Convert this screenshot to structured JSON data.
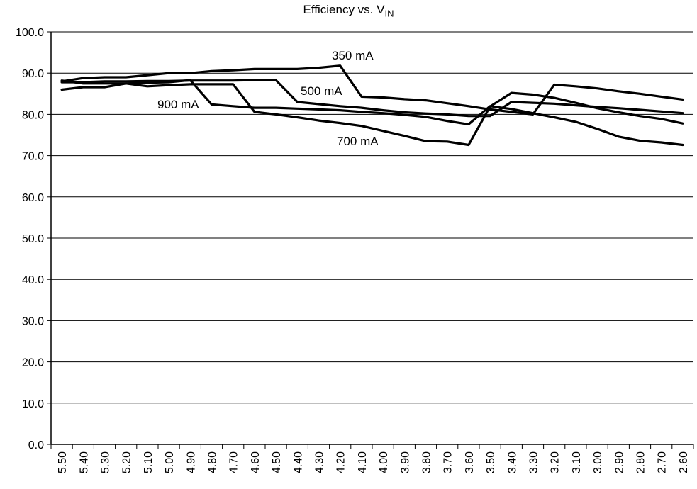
{
  "chart_data": {
    "type": "line",
    "title_text": "Efficiency vs. V",
    "title_subscript": "IN",
    "xlabel": "",
    "ylabel": "",
    "ylim": [
      0,
      100
    ],
    "yticks": [
      "0.0",
      "10.0",
      "20.0",
      "30.0",
      "40.0",
      "50.0",
      "60.0",
      "70.0",
      "80.0",
      "90.0",
      "100.0"
    ],
    "categories": [
      "5.50",
      "5.40",
      "5.30",
      "5.20",
      "5.10",
      "5.00",
      "4.90",
      "4.80",
      "4.70",
      "4.60",
      "4.50",
      "4.40",
      "4.30",
      "4.20",
      "4.10",
      "4.00",
      "3.90",
      "3.80",
      "3.70",
      "3.60",
      "3.50",
      "3.40",
      "3.30",
      "3.20",
      "3.10",
      "3.00",
      "2.90",
      "2.80",
      "2.70",
      "2.60"
    ],
    "grid": true,
    "series": [
      {
        "name": "350 mA",
        "values": [
          88.0,
          88.8,
          89.0,
          89.0,
          89.5,
          90.0,
          90.0,
          90.5,
          90.7,
          91.0,
          91.0,
          91.0,
          91.3,
          91.8,
          84.3,
          84.1,
          83.7,
          83.4,
          82.7,
          82.0,
          81.2,
          80.6,
          80.0,
          87.2,
          86.8,
          86.3,
          85.6,
          85.0,
          84.3,
          83.6
        ]
      },
      {
        "name": "500 mA",
        "values": [
          87.8,
          87.8,
          88.0,
          88.0,
          88.1,
          88.1,
          88.2,
          88.2,
          88.2,
          88.3,
          88.3,
          83.0,
          82.5,
          82.0,
          81.6,
          81.0,
          80.5,
          80.2,
          80.0,
          79.6,
          79.6,
          83.0,
          82.8,
          82.6,
          82.2,
          81.8,
          81.5,
          81.1,
          80.7,
          80.3
        ]
      },
      {
        "name": "900 mA",
        "values": [
          88.2,
          87.5,
          87.5,
          87.5,
          87.7,
          87.8,
          88.3,
          82.4,
          82.0,
          81.6,
          81.6,
          81.4,
          81.2,
          81.0,
          80.6,
          80.3,
          79.9,
          79.4,
          78.4,
          77.6,
          82.0,
          81.3,
          80.3,
          79.3,
          78.2,
          76.5,
          74.6,
          73.6,
          73.2,
          72.6
        ]
      },
      {
        "name": "700 mA",
        "values": [
          86.0,
          86.6,
          86.6,
          87.5,
          86.8,
          87.1,
          87.3,
          87.3,
          87.3,
          80.6,
          80.0,
          79.3,
          78.5,
          77.9,
          77.2,
          76.0,
          74.8,
          73.5,
          73.4,
          72.6,
          81.9,
          85.2,
          84.8,
          84.0,
          82.8,
          81.5,
          80.5,
          79.6,
          78.9,
          77.8
        ]
      }
    ],
    "annotations": [
      "350 mA",
      "500 mA",
      "900 mA",
      "700 mA"
    ]
  }
}
